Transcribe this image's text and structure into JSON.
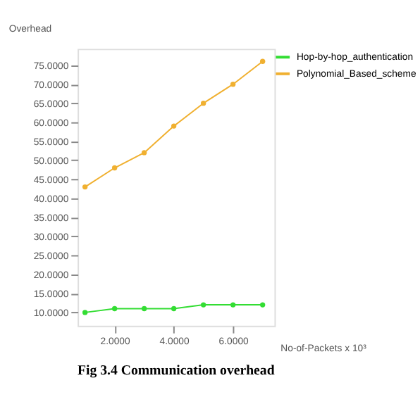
{
  "chart_data": {
    "type": "line",
    "xlabel": "No-of-Packets x 10³",
    "ylabel": "Overhead",
    "annotations": [
      "Fig 3.4 Communication overhead"
    ],
    "x": [
      1,
      2,
      3,
      4,
      5,
      6,
      7
    ],
    "series": [
      {
        "name": "Hop-by-hop_authentication",
        "color": "#33dd33",
        "values": [
          10,
          11,
          11,
          11,
          12,
          12,
          12
        ]
      },
      {
        "name": "Polynomial_Based_scheme",
        "color": "#f0b030",
        "values": [
          43,
          48,
          52,
          59,
          65,
          70,
          76
        ]
      }
    ],
    "xlim": [
      0.75,
      7.4
    ],
    "xticks": [
      {
        "value": 2,
        "label": "2.0000"
      },
      {
        "value": 4,
        "label": "4.0000"
      },
      {
        "value": 6,
        "label": "6.0000"
      }
    ],
    "ylim": [
      6.5,
      79.3
    ],
    "yticks": [
      {
        "value": 10,
        "label": "10.0000"
      },
      {
        "value": 15,
        "label": "15.0000"
      },
      {
        "value": 20,
        "label": "20.0000"
      },
      {
        "value": 25,
        "label": "25.0000"
      },
      {
        "value": 30,
        "label": "30.0000"
      },
      {
        "value": 35,
        "label": "35.0000"
      },
      {
        "value": 40,
        "label": "40.0000"
      },
      {
        "value": 45,
        "label": "45.0000"
      },
      {
        "value": 50,
        "label": "50.0000"
      },
      {
        "value": 55,
        "label": "55.0000"
      },
      {
        "value": 60,
        "label": "60.0000"
      },
      {
        "value": 65,
        "label": "65.0000"
      },
      {
        "value": 70,
        "label": "70.0000"
      },
      {
        "value": 75,
        "label": "75.0000"
      }
    ],
    "grid": false,
    "legend": "top right",
    "marker": "circle",
    "line_style": "solid"
  }
}
